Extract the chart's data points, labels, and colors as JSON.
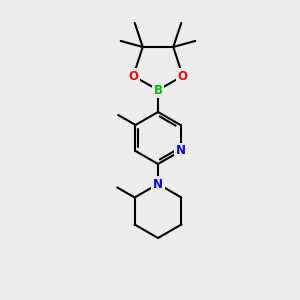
{
  "bg_color": "#ececec",
  "bond_color": "#000000",
  "bond_width": 1.5,
  "atom_colors": {
    "B": "#00bb00",
    "O": "#ff0000",
    "N": "#0000ff",
    "C": "#000000"
  },
  "font_size": 8.5,
  "fig_size": [
    3.0,
    3.0
  ],
  "dpi": 100
}
